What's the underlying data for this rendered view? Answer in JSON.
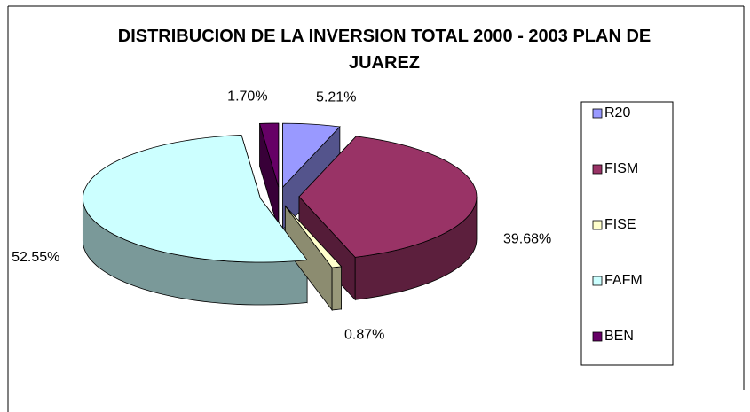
{
  "chart_data": {
    "type": "pie3d",
    "title": "DISTRIBUCION DE LA INVERSION TOTAL 2000 - 2003 PLAN DE JUAREZ",
    "categories": [
      "R20",
      "FISM",
      "FISE",
      "FAFM",
      "BEN"
    ],
    "values": [
      5.21,
      39.68,
      0.87,
      52.55,
      1.7
    ],
    "value_labels": [
      "5.21%",
      "39.68%",
      "0.87%",
      "52.55%",
      "1.70%"
    ],
    "colors": [
      "#9999ff",
      "#993366",
      "#ffffcc",
      "#ccffff",
      "#660066"
    ],
    "legend": "right"
  }
}
